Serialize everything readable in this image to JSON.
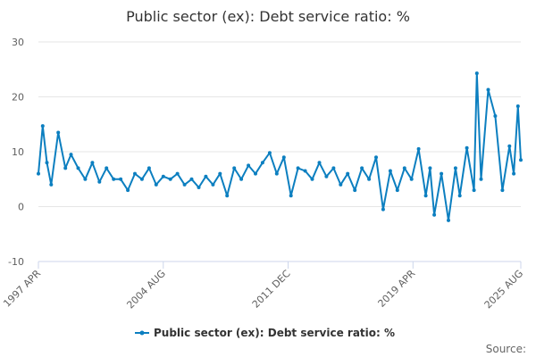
{
  "chart_data": {
    "type": "line",
    "title": "Public sector (ex): Debt service ratio: %",
    "xlabel": "",
    "ylabel": "",
    "ylim": [
      -10,
      30
    ],
    "yticks": [
      "30",
      "20",
      "10",
      "0",
      "-10"
    ],
    "x_range": [
      "1997 APR",
      "2025 AUG"
    ],
    "xticks": [
      "1997 APR",
      "2004 AUG",
      "2011 DEC",
      "2019 APR",
      "2025 AUG"
    ],
    "grid": true,
    "legend_position": "bottom-center",
    "series": [
      {
        "name": "Public sector (ex): Debt service ratio: %",
        "color": "#0c7fc0",
        "x": [
          "1997-04",
          "1997-07",
          "1997-10",
          "1998-01",
          "1998-06",
          "1998-11",
          "1999-03",
          "1999-08",
          "2000-01",
          "2000-06",
          "2000-11",
          "2001-04",
          "2001-09",
          "2002-02",
          "2002-07",
          "2002-12",
          "2003-05",
          "2003-10",
          "2004-03",
          "2004-08",
          "2005-01",
          "2005-06",
          "2005-11",
          "2006-04",
          "2006-09",
          "2007-02",
          "2007-07",
          "2007-12",
          "2008-05",
          "2008-10",
          "2009-03",
          "2009-08",
          "2010-01",
          "2010-06",
          "2010-11",
          "2011-04",
          "2011-09",
          "2012-02",
          "2012-07",
          "2012-12",
          "2013-05",
          "2013-10",
          "2014-03",
          "2014-08",
          "2015-01",
          "2015-06",
          "2015-11",
          "2016-04",
          "2016-09",
          "2017-02",
          "2017-07",
          "2017-12",
          "2018-05",
          "2018-10",
          "2019-03",
          "2019-08",
          "2020-01",
          "2020-04",
          "2020-07",
          "2020-12",
          "2021-05",
          "2021-10",
          "2022-01",
          "2022-06",
          "2022-11",
          "2023-01",
          "2023-04",
          "2023-09",
          "2024-02",
          "2024-07",
          "2024-12",
          "2025-03",
          "2025-06",
          "2025-08"
        ],
        "values": [
          6,
          14.7,
          8,
          4,
          13.5,
          7,
          9.5,
          7,
          5,
          8,
          4.5,
          7,
          5,
          5,
          3,
          6,
          5,
          7,
          4,
          5.5,
          5,
          6,
          4,
          5,
          3.5,
          5.5,
          4,
          6,
          2,
          7,
          5,
          7.5,
          6,
          8,
          9.8,
          6,
          9,
          2,
          7,
          6.5,
          5,
          8,
          5.5,
          7,
          4,
          6,
          3,
          7,
          5,
          9,
          -0.5,
          6.5,
          3,
          7,
          5,
          10.5,
          2,
          7,
          -1.5,
          6,
          -2.5,
          7,
          2,
          10.7,
          3,
          24.3,
          5,
          21.3,
          16.5,
          3,
          11,
          6,
          18.3,
          8.5
        ]
      }
    ],
    "source_label": "Source:"
  }
}
